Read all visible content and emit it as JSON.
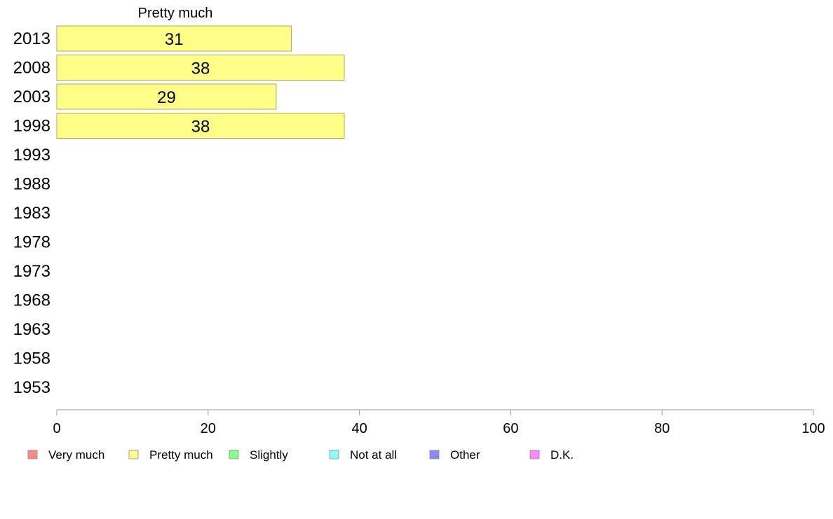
{
  "chart_data": {
    "type": "bar",
    "orientation": "horizontal",
    "title": "Pretty much",
    "categories": [
      "2013",
      "2008",
      "2003",
      "1998",
      "1993",
      "1988",
      "1983",
      "1978",
      "1973",
      "1968",
      "1963",
      "1958",
      "1953"
    ],
    "series": [
      {
        "name": "Pretty much",
        "color": "#ffff88",
        "values": [
          31,
          38,
          29,
          38,
          null,
          null,
          null,
          null,
          null,
          null,
          null,
          null,
          null
        ]
      }
    ],
    "data_labels": [
      "31",
      "38",
      "29",
      "38"
    ],
    "xlim": [
      0,
      100
    ],
    "xticks": [
      0,
      20,
      40,
      60,
      80,
      100
    ],
    "grid": false,
    "legend_position": "bottom",
    "legend": [
      {
        "label": "Very much",
        "color": "#ff8888"
      },
      {
        "label": "Pretty much",
        "color": "#ffff88"
      },
      {
        "label": "Slightly",
        "color": "#88ff88"
      },
      {
        "label": "Not at all",
        "color": "#88ffff"
      },
      {
        "label": "Other",
        "color": "#8888ff"
      },
      {
        "label": "D.K.",
        "color": "#ff88ff"
      }
    ]
  }
}
